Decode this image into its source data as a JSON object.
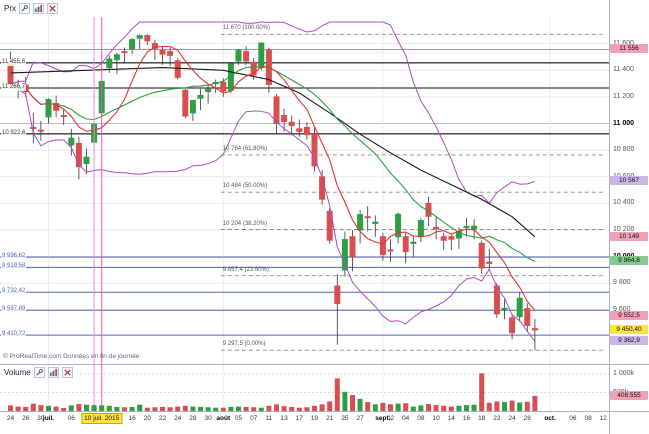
{
  "price_panel": {
    "header": {
      "title": "Prx",
      "icons": [
        "wrench-icon",
        "chart-icon",
        "close-icon"
      ]
    },
    "copyright": "© ProRealTime.com  Données en fin de journée"
  },
  "volume_panel": {
    "header": {
      "title": "Volume",
      "icons": [
        "wrench-icon",
        "chart-icon",
        "close-icon"
      ]
    },
    "axis_labels": [
      {
        "label": "1 000k",
        "value": 1000000
      },
      {
        "label": "500k",
        "value": 500000
      }
    ],
    "current": {
      "label": "408.555",
      "value": 408555,
      "bg": "#f2a0b6"
    }
  },
  "price_axis": {
    "ticks": [
      {
        "label": "11 600",
        "value": 11600
      },
      {
        "label": "11 400",
        "value": 11400
      },
      {
        "label": "11 200",
        "value": 11200
      },
      {
        "label": "11 000",
        "value": 11000,
        "bold": true
      },
      {
        "label": "10 800",
        "value": 10800
      },
      {
        "label": "10 600",
        "value": 10600
      },
      {
        "label": "10 400",
        "value": 10400
      },
      {
        "label": "10 200",
        "value": 10200
      },
      {
        "label": "10 000",
        "value": 10000,
        "bold": true
      },
      {
        "label": "9 800",
        "value": 9800
      },
      {
        "label": "9 600",
        "value": 9600
      }
    ],
    "chips": [
      {
        "label": "11 556",
        "value": 11556,
        "bg": "#f2a0b6"
      },
      {
        "label": "10 567",
        "value": 10567,
        "bg": "#cbb6ea"
      },
      {
        "label": "10 149",
        "value": 10149,
        "bg": "#f2a0b6"
      },
      {
        "label": "9 964,8",
        "value": 9964.8,
        "bg": "#84c98f"
      },
      {
        "label": "9 552,5",
        "value": 9552.5,
        "bg": "#f2a0b6"
      },
      {
        "label": "9 450,40",
        "value": 9450.4,
        "bg": "#ffe33e"
      },
      {
        "label": "9 362,9",
        "value": 9362.9,
        "bg": "#cbb6ea"
      }
    ]
  },
  "time_axis": {
    "ticks": [
      {
        "i": 0,
        "label": "24"
      },
      {
        "i": 2,
        "label": "26"
      },
      {
        "i": 4,
        "label": "30"
      },
      {
        "i": 5,
        "label": "juil.",
        "b": true
      },
      {
        "i": 8,
        "label": "06"
      },
      {
        "i": 10,
        "label": "08"
      },
      {
        "i": 14,
        "label": "14"
      },
      {
        "i": 16,
        "label": "16"
      },
      {
        "i": 18,
        "label": "20"
      },
      {
        "i": 20,
        "label": "22"
      },
      {
        "i": 22,
        "label": "24"
      },
      {
        "i": 24,
        "label": "28"
      },
      {
        "i": 26,
        "label": "30"
      },
      {
        "i": 28,
        "label": "août",
        "b": true
      },
      {
        "i": 30,
        "label": "05"
      },
      {
        "i": 32,
        "label": "07"
      },
      {
        "i": 34,
        "label": "11"
      },
      {
        "i": 36,
        "label": "13"
      },
      {
        "i": 38,
        "label": "17"
      },
      {
        "i": 40,
        "label": "19"
      },
      {
        "i": 42,
        "label": "21"
      },
      {
        "i": 44,
        "label": "25"
      },
      {
        "i": 46,
        "label": "27"
      },
      {
        "i": 49,
        "label": "sept.",
        "b": true
      },
      {
        "i": 50,
        "label": "02"
      },
      {
        "i": 52,
        "label": "04"
      },
      {
        "i": 54,
        "label": "08"
      },
      {
        "i": 56,
        "label": "10"
      },
      {
        "i": 58,
        "label": "14"
      },
      {
        "i": 60,
        "label": "16"
      },
      {
        "i": 62,
        "label": "18"
      },
      {
        "i": 64,
        "label": "22"
      },
      {
        "i": 66,
        "label": "24"
      },
      {
        "i": 68,
        "label": "28"
      },
      {
        "i": 71,
        "label": "oct.",
        "b": true
      },
      {
        "i": 74,
        "label": "06"
      },
      {
        "i": 76,
        "label": "08"
      },
      {
        "i": 78,
        "label": "12"
      }
    ],
    "cursor_chip": {
      "label": "10 juil. 2015",
      "i": 12,
      "bg": "#ffe33e"
    }
  },
  "chart_data": {
    "type": "candlestick",
    "title": "Prx",
    "periodicity": "fin de journée",
    "price_axis_range": [
      9254,
      11800
    ],
    "volume_axis_max": 1000000,
    "future_slots": 9,
    "colors": {
      "up": "#2f9e44",
      "down": "#d94f4f",
      "wick": "#333333",
      "grid": "#e9e9ef",
      "grid_bold": "#bdbdcd"
    },
    "candles": [
      [
        "24/06",
        11470,
        11540,
        11290,
        11300,
        150000
      ],
      [
        "25/06",
        11280,
        11330,
        11190,
        11270,
        120000
      ],
      [
        "26/06",
        11290,
        11350,
        11200,
        11240,
        110000
      ],
      [
        "29/06",
        10970,
        11080,
        10850,
        10965,
        200000
      ],
      [
        "30/06",
        10950,
        11020,
        10870,
        10945,
        160000
      ],
      [
        "01/07",
        11050,
        11190,
        11000,
        11180,
        140000
      ],
      [
        "02/07",
        11150,
        11210,
        11050,
        11099,
        120000
      ],
      [
        "03/07",
        11060,
        11110,
        10990,
        11058,
        80000
      ],
      [
        "06/07",
        10840,
        10960,
        10760,
        10890,
        150000
      ],
      [
        "07/07",
        10850,
        10900,
        10580,
        10676,
        190000
      ],
      [
        "08/07",
        10700,
        10810,
        10620,
        10747,
        170000
      ],
      [
        "09/07",
        10860,
        11010,
        10830,
        10996,
        160000
      ],
      [
        "10/07",
        11080,
        11320,
        11050,
        11316,
        150000
      ],
      [
        "13/07",
        11420,
        11510,
        11380,
        11484,
        140000
      ],
      [
        "14/07",
        11480,
        11530,
        11370,
        11516,
        110000
      ],
      [
        "15/07",
        11540,
        11570,
        11450,
        11539,
        100000
      ],
      [
        "16/07",
        11560,
        11640,
        11520,
        11630,
        110000
      ],
      [
        "17/07",
        11640,
        11669,
        11560,
        11660,
        170000
      ],
      [
        "20/07",
        11660,
        11670,
        11590,
        11620,
        90000
      ],
      [
        "21/07",
        11600,
        11630,
        11480,
        11565,
        100000
      ],
      [
        "22/07",
        11550,
        11575,
        11440,
        11521,
        110000
      ],
      [
        "23/07",
        11540,
        11570,
        11430,
        11512,
        100000
      ],
      [
        "24/07",
        11470,
        11490,
        11330,
        11347,
        120000
      ],
      [
        "27/07",
        11250,
        11260,
        11040,
        11056,
        140000
      ],
      [
        "28/07",
        11080,
        11180,
        11020,
        11173,
        120000
      ],
      [
        "29/07",
        11190,
        11260,
        11100,
        11211,
        110000
      ],
      [
        "30/07",
        11240,
        11300,
        11150,
        11257,
        100000
      ],
      [
        "31/07",
        11300,
        11330,
        11230,
        11309,
        90000
      ],
      [
        "03/08",
        11310,
        11340,
        11200,
        11244,
        90000
      ],
      [
        "04/08",
        11250,
        11460,
        11230,
        11448,
        110000
      ],
      [
        "05/08",
        11470,
        11560,
        11440,
        11550,
        120000
      ],
      [
        "06/08",
        11540,
        11580,
        11440,
        11470,
        110000
      ],
      [
        "07/08",
        11460,
        11490,
        11330,
        11364,
        100000
      ],
      [
        "10/08",
        11420,
        11610,
        11400,
        11604,
        90000
      ],
      [
        "11/08",
        11550,
        11570,
        11230,
        11293,
        140000
      ],
      [
        "12/08",
        11200,
        11220,
        10920,
        11000,
        180000
      ],
      [
        "13/08",
        11060,
        11110,
        10940,
        11015,
        130000
      ],
      [
        "14/08",
        11010,
        11060,
        10910,
        10985,
        110000
      ],
      [
        "17/08",
        10960,
        11030,
        10900,
        10940,
        90000
      ],
      [
        "18/08",
        10970,
        11010,
        10880,
        10916,
        100000
      ],
      [
        "19/08",
        10920,
        10980,
        10640,
        10682,
        140000
      ],
      [
        "20/08",
        10600,
        10650,
        10390,
        10432,
        180000
      ],
      [
        "21/08",
        10340,
        10360,
        10100,
        10124,
        260000
      ],
      [
        "24/08",
        9780,
        9870,
        9338,
        9648,
        880000
      ],
      [
        "25/08",
        9900,
        10190,
        9850,
        10128,
        520000
      ],
      [
        "26/08",
        10150,
        10200,
        9890,
        9998,
        430000
      ],
      [
        "27/08",
        10200,
        10350,
        10100,
        10315,
        330000
      ],
      [
        "28/08",
        10300,
        10380,
        10190,
        10299,
        240000
      ],
      [
        "31/08",
        10250,
        10310,
        10150,
        10259,
        180000
      ],
      [
        "01/09",
        10150,
        10180,
        9970,
        10016,
        220000
      ],
      [
        "02/09",
        10050,
        10130,
        9960,
        10048,
        180000
      ],
      [
        "03/09",
        10150,
        10330,
        10100,
        10318,
        200000
      ],
      [
        "04/09",
        10150,
        10180,
        9950,
        10038,
        210000
      ],
      [
        "07/09",
        10100,
        10160,
        10000,
        10109,
        120000
      ],
      [
        "08/09",
        10150,
        10290,
        10110,
        10271,
        150000
      ],
      [
        "09/09",
        10400,
        10450,
        10230,
        10303,
        190000
      ],
      [
        "10/09",
        10220,
        10300,
        10130,
        10210,
        160000
      ],
      [
        "11/09",
        10150,
        10180,
        10050,
        10123,
        140000
      ],
      [
        "14/09",
        10150,
        10170,
        10050,
        10131,
        120000
      ],
      [
        "15/09",
        10140,
        10220,
        10060,
        10188,
        140000
      ],
      [
        "16/09",
        10220,
        10290,
        10150,
        10227,
        160000
      ],
      [
        "17/09",
        10210,
        10280,
        10130,
        10229,
        170000
      ],
      [
        "18/09",
        10100,
        10120,
        9870,
        9916,
        1020000
      ],
      [
        "21/09",
        9960,
        10060,
        9900,
        9949,
        220000
      ],
      [
        "22/09",
        9780,
        9800,
        9540,
        9571,
        260000
      ],
      [
        "23/09",
        9610,
        9680,
        9530,
        9612,
        240000
      ],
      [
        "24/09",
        9540,
        9570,
        9380,
        9428,
        280000
      ],
      [
        "25/09",
        9550,
        9730,
        9510,
        9688,
        230000
      ],
      [
        "28/09",
        9610,
        9650,
        9440,
        9483,
        250000
      ],
      [
        "29/09",
        9460,
        9530,
        9297.5,
        9450.4,
        408555
      ]
    ],
    "indicators": {
      "ma_fast": {
        "type": "sma",
        "period": 7,
        "color": "#e03535"
      },
      "ma_slow": {
        "type": "sma",
        "period": 20,
        "color": "#2f9e3f"
      },
      "bollinger": {
        "period": 20,
        "deviation": 2,
        "color": "#a84fc0"
      },
      "long_ma": {
        "color": "#1a1a1a",
        "anchors": [
          [
            0,
            11380
          ],
          [
            10,
            11400
          ],
          [
            20,
            11420
          ],
          [
            28,
            11400
          ],
          [
            34,
            11330
          ],
          [
            38,
            11230
          ],
          [
            42,
            11080
          ],
          [
            46,
            10920
          ],
          [
            50,
            10780
          ],
          [
            54,
            10650
          ],
          [
            58,
            10540
          ],
          [
            62,
            10430
          ],
          [
            66,
            10300
          ],
          [
            69,
            10149
          ]
        ]
      }
    },
    "fib": {
      "start_index": 28,
      "levels": [
        {
          "label": "11 670 (100.00%)",
          "value": 11670
        },
        {
          "label": "10 764 (61.80%)",
          "value": 10764
        },
        {
          "label": "10 484 (50.00%)",
          "value": 10484
        },
        {
          "label": "10 204 (38.20%)",
          "value": 10204
        },
        {
          "label": "9 857,4 (23.60%)",
          "value": 9857.4
        },
        {
          "label": "9 297,5 (0.00%)",
          "value": 9297.5
        }
      ]
    },
    "hlines": [
      {
        "label": "11 455,8",
        "value": 11455.8,
        "color": "#3a3a3a",
        "width": 1.3
      },
      {
        "label": "11 266,7",
        "value": 11266.7,
        "color": "#3a3a3a",
        "width": 1.3
      },
      {
        "label": "10 922,6",
        "value": 10922.6,
        "color": "#3a3a3a",
        "width": 1.3
      },
      {
        "label": "9 996,62",
        "value": 9996.62,
        "color": "#5166ad",
        "width": 1
      },
      {
        "label": "9 919,58",
        "value": 9919.58,
        "color": "#5166ad",
        "width": 1
      },
      {
        "label": "9 732,42",
        "value": 9732.42,
        "color": "#5166ad",
        "width": 1
      },
      {
        "label": "9 597,89",
        "value": 9597.89,
        "color": "#5166ad",
        "width": 1
      },
      {
        "label": "9 410,72",
        "value": 9410.72,
        "color": "#5166ad",
        "width": 1
      }
    ],
    "alert_lines": [
      {
        "value": 11556,
        "color": "#e27a95"
      }
    ],
    "vlines": [
      {
        "index": 11,
        "color": "#f08ad8"
      },
      {
        "index": 12,
        "color": "#e256c4"
      }
    ]
  }
}
